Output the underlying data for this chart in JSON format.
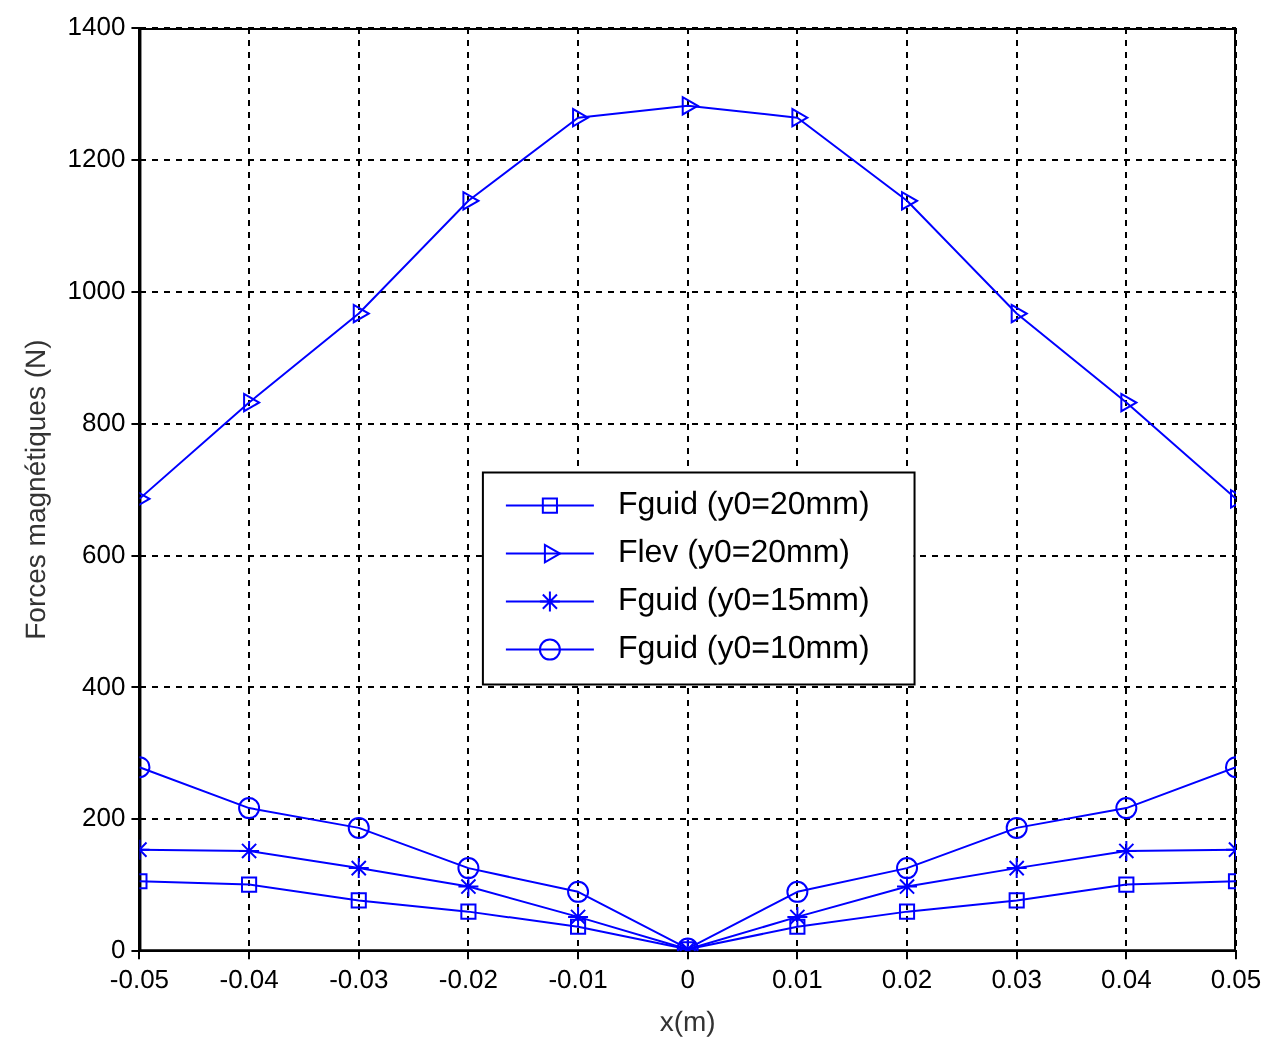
{
  "chart_data": {
    "type": "line",
    "xlabel": "x(m)",
    "ylabel": "Forces magnétiques (N)",
    "x": [
      -0.05,
      -0.04,
      -0.03,
      -0.02,
      -0.01,
      0,
      0.01,
      0.02,
      0.03,
      0.04,
      0.05
    ],
    "series": [
      {
        "name": "Fguid (y0=20mm)",
        "color": "#0000ff",
        "marker": "square",
        "values": [
          106,
          101,
          77,
          60,
          37,
          3,
          37,
          60,
          77,
          101,
          106
        ]
      },
      {
        "name": "Flev (y0=20mm)",
        "color": "#0000ff",
        "marker": "triangle",
        "values": [
          686,
          832,
          967,
          1138,
          1264,
          1282,
          1264,
          1138,
          967,
          832,
          686
        ]
      },
      {
        "name": "Fguid (y0=15mm)",
        "color": "#0000ff",
        "marker": "cross",
        "values": [
          154,
          152,
          126,
          98,
          52,
          3,
          52,
          98,
          126,
          152,
          154
        ]
      },
      {
        "name": "Fguid (y0=10mm)",
        "color": "#0000ff",
        "marker": "circle",
        "values": [
          279,
          217,
          187,
          126,
          90,
          4,
          90,
          126,
          187,
          217,
          279
        ]
      }
    ],
    "xlim": [
      -0.05,
      0.05
    ],
    "xticks": [
      -0.05,
      -0.04,
      -0.03,
      -0.02,
      -0.01,
      0,
      0.01,
      0.02,
      0.03,
      0.04,
      0.05
    ],
    "ylim": [
      0,
      1400
    ],
    "yticks": [
      0,
      200,
      400,
      600,
      800,
      1000,
      1200,
      1400
    ],
    "grid": true,
    "legend": "center",
    "line_style": "solid"
  }
}
